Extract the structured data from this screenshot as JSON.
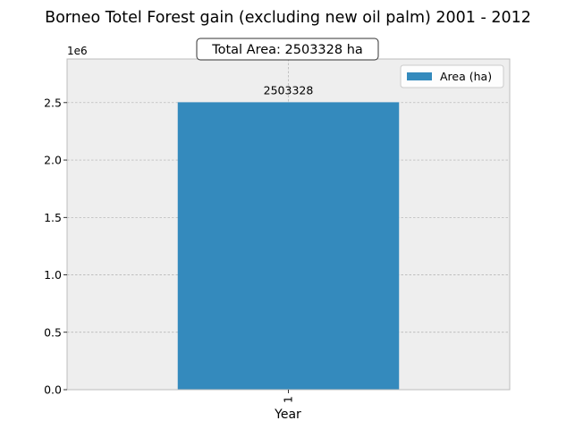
{
  "chart_data": {
    "type": "bar",
    "title": "Borneo Totel Forest gain (excluding new oil palm) 2001 - 2012",
    "annotation": "Total Area: 2503328 ha",
    "xlabel": "Year",
    "ylabel": "",
    "categories": [
      "1"
    ],
    "series": [
      {
        "name": "Area (ha)",
        "values": [
          2503328
        ],
        "color": "#348abd"
      }
    ],
    "data_labels": [
      "2503328"
    ],
    "ylim": [
      0,
      2880000
    ],
    "yticks": [
      0,
      500000,
      1000000,
      1500000,
      2000000,
      2500000
    ],
    "ytick_labels": [
      "0.0",
      "0.5",
      "1.0",
      "1.5",
      "2.0",
      "2.5"
    ],
    "y_offset_label": "1e6",
    "legend_position": "top-right",
    "grid": true,
    "colors": {
      "plot_bg": "#eeeeee",
      "grid": "#b0b0b0",
      "frame": "#bcbcbc"
    }
  }
}
